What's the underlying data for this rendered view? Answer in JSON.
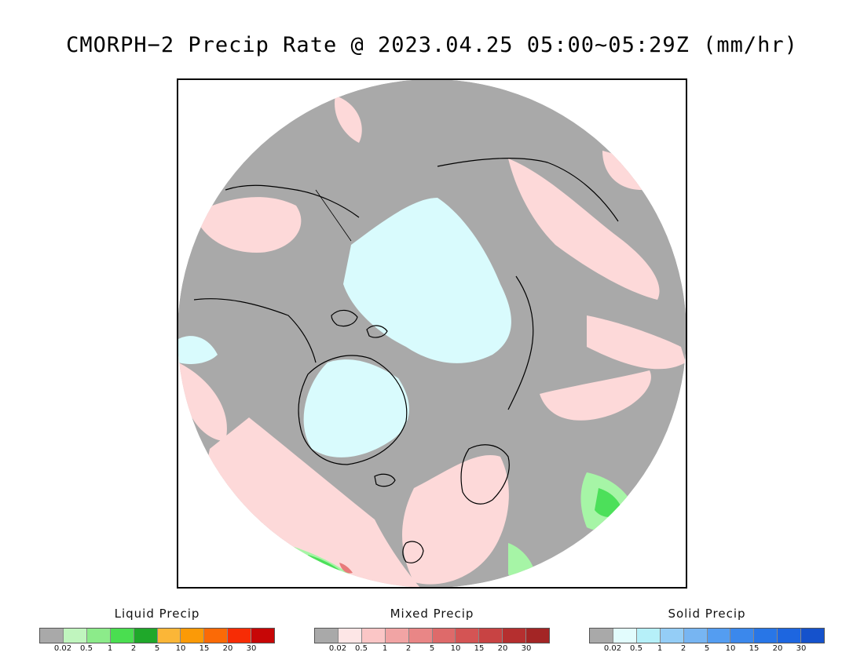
{
  "title": "CMORPH−2 Precip Rate @ 2023.04.25 05:00~05:29Z (mm/hr)",
  "map": {
    "projection": "north-polar-stereographic",
    "colors": {
      "no_precip": "#a9a9a9",
      "mixed_light": "#fdd9d9",
      "solid_light": "#d9fbfd",
      "liquid_light": "#a6f5a6",
      "liquid_mid": "#4ce05a",
      "liquid_dark": "#1fa82a",
      "mixed_accent": "#e87a7a",
      "frame": "#000000",
      "coastline": "#000000"
    }
  },
  "legends": [
    {
      "title": "Liquid Precip",
      "ticks": [
        "0.02",
        "0.5",
        "1",
        "2",
        "5",
        "10",
        "15",
        "20",
        "30"
      ],
      "colors": [
        "#a9a9a9",
        "#c0f5be",
        "#8ceb8a",
        "#4ade50",
        "#1fa82a",
        "#fbb637",
        "#fb9a07",
        "#fb6a06",
        "#f72c05",
        "#c70606"
      ]
    },
    {
      "title": "Mixed Precip",
      "ticks": [
        "0.02",
        "0.5",
        "1",
        "2",
        "5",
        "10",
        "15",
        "20",
        "30"
      ],
      "colors": [
        "#a9a9a9",
        "#fde6e6",
        "#fbc6c6",
        "#f1a4a4",
        "#e98686",
        "#de6a6a",
        "#d45454",
        "#c84343",
        "#b52f2f",
        "#a32525"
      ]
    },
    {
      "title": "Solid Precip",
      "ticks": [
        "0.02",
        "0.5",
        "1",
        "2",
        "5",
        "10",
        "15",
        "20",
        "30"
      ],
      "colors": [
        "#a9a9a9",
        "#e2fcfd",
        "#b6f0f9",
        "#94cdf6",
        "#77b5f2",
        "#549df1",
        "#3b88ec",
        "#2876e7",
        "#1d66e0",
        "#1552cc"
      ]
    }
  ]
}
